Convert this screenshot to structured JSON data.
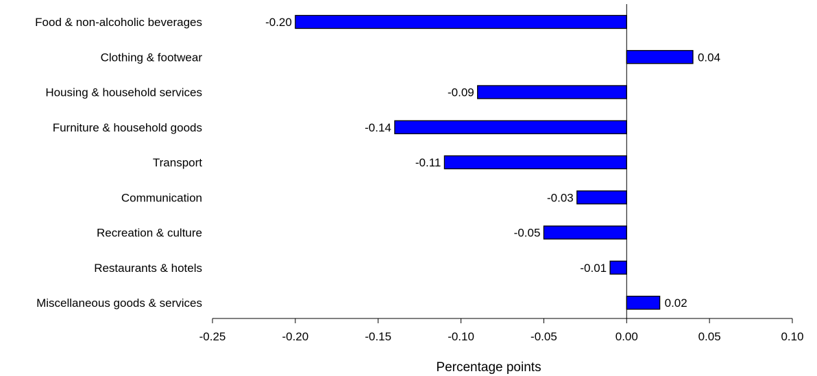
{
  "chart_data": {
    "type": "bar",
    "orientation": "horizontal",
    "categories": [
      "Food & non-alcoholic beverages",
      "Clothing & footwear",
      "Housing & household services",
      "Furniture & household goods",
      "Transport",
      "Communication",
      "Recreation & culture",
      "Restaurants & hotels",
      "Miscellaneous goods & services"
    ],
    "values": [
      -0.2,
      0.04,
      -0.09,
      -0.14,
      -0.11,
      -0.03,
      -0.05,
      -0.01,
      0.02
    ],
    "value_labels": [
      "-0.20",
      "0.04",
      "-0.09",
      "-0.14",
      "-0.11",
      "-0.03",
      "-0.05",
      "-0.01",
      "0.02"
    ],
    "xlabel": "Percentage points",
    "xlim": [
      -0.25,
      0.1
    ],
    "xticks": [
      -0.25,
      -0.2,
      -0.15,
      -0.1,
      -0.05,
      0.0,
      0.05,
      0.1
    ],
    "xtick_labels": [
      "-0.25",
      "-0.20",
      "-0.15",
      "-0.10",
      "-0.05",
      "0.00",
      "0.05",
      "0.10"
    ],
    "bar_color": "#0000FF",
    "bar_outline_color": "#000000",
    "grid": false,
    "legend": "none"
  }
}
